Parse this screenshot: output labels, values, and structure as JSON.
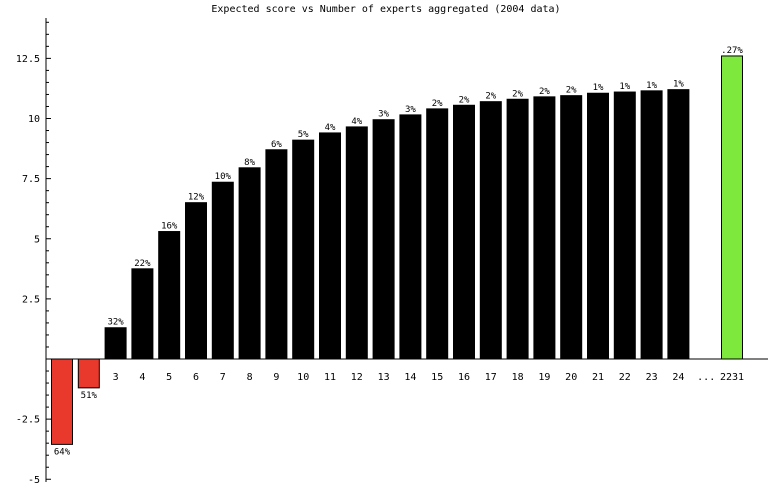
{
  "chart_data": {
    "type": "bar",
    "title": "Expected score vs Number of experts aggregated (2004 data)",
    "xlabel": "",
    "ylabel": "",
    "ylim": [
      -5,
      14
    ],
    "yticks": [
      "-5",
      "-2.5",
      "2.5",
      "5",
      "7.5",
      "10",
      "12.5"
    ],
    "ytick_values": [
      -5,
      -2.5,
      2.5,
      5,
      7.5,
      10,
      12.5
    ],
    "gap_label": "...",
    "categories": [
      "",
      "",
      "3",
      "4",
      "5",
      "6",
      "7",
      "8",
      "9",
      "10",
      "11",
      "12",
      "13",
      "14",
      "15",
      "16",
      "17",
      "18",
      "19",
      "20",
      "21",
      "22",
      "23",
      "24",
      "",
      "2231"
    ],
    "values": [
      -3.55,
      -1.2,
      1.3,
      3.75,
      5.3,
      6.5,
      7.35,
      7.95,
      8.7,
      9.1,
      9.4,
      9.65,
      9.95,
      10.15,
      10.4,
      10.55,
      10.7,
      10.8,
      10.9,
      10.95,
      11.05,
      11.1,
      11.15,
      11.2,
      null,
      12.6
    ],
    "data_labels": [
      "64%",
      "51%",
      "32%",
      "22%",
      "16%",
      "12%",
      "10%",
      "8%",
      "6%",
      "5%",
      "4%",
      "4%",
      "3%",
      "3%",
      "2%",
      "2%",
      "2%",
      "2%",
      "2%",
      "2%",
      "1%",
      "1%",
      "1%",
      "1%",
      "",
      ".27%"
    ],
    "colors": {
      "negative": "#e8392c",
      "positive": "#000000",
      "highlight": "#7ee83c"
    },
    "highlight_index": 25,
    "grid": false,
    "legend": "none"
  }
}
